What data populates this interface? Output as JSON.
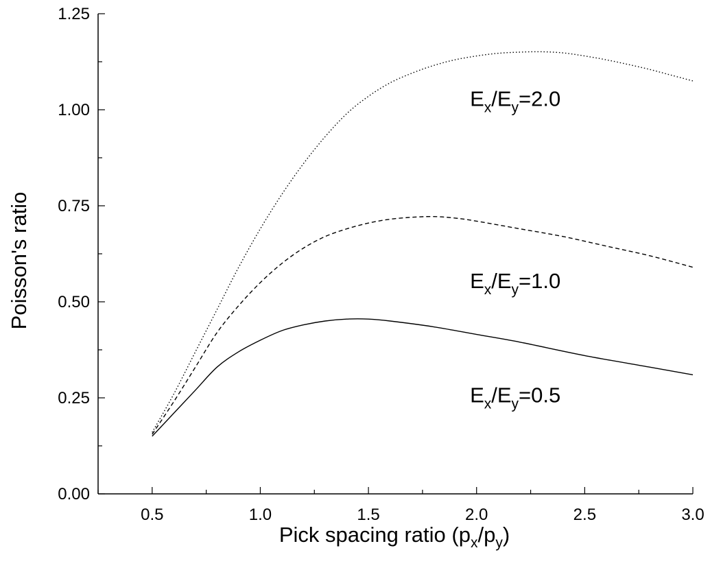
{
  "chart_data": {
    "type": "line",
    "xlabel_main": "Pick spacing ratio (p",
    "xlabel_sub1": "x",
    "xlabel_mid": "/p",
    "xlabel_sub2": "y",
    "xlabel_end": ")",
    "ylabel": "Poisson's ratio",
    "xlim": [
      0.25,
      3.0
    ],
    "ylim": [
      0.0,
      1.25
    ],
    "x_ticks": [
      "0.5",
      "1.0",
      "1.5",
      "2.0",
      "2.5",
      "3.0"
    ],
    "y_ticks": [
      "0.00",
      "0.25",
      "0.50",
      "0.75",
      "1.00",
      "1.25"
    ],
    "grid": false,
    "series": [
      {
        "label_a": "E",
        "label_sub_a": "x",
        "label_b": "/E",
        "label_sub_b": "y",
        "label_c": "=0.5",
        "style": "solid",
        "x": [
          0.5,
          0.6,
          0.7,
          0.8,
          0.9,
          1.0,
          1.1,
          1.2,
          1.3,
          1.4,
          1.5,
          1.6,
          1.8,
          2.0,
          2.2,
          2.5,
          2.8,
          3.0
        ],
        "y": [
          0.15,
          0.21,
          0.27,
          0.33,
          0.37,
          0.4,
          0.425,
          0.44,
          0.45,
          0.455,
          0.455,
          0.45,
          0.435,
          0.415,
          0.395,
          0.36,
          0.33,
          0.31
        ]
      },
      {
        "label_a": "E",
        "label_sub_a": "x",
        "label_b": "/E",
        "label_sub_b": "y",
        "label_c": "=1.0",
        "style": "dashed",
        "x": [
          0.5,
          0.6,
          0.7,
          0.8,
          0.9,
          1.0,
          1.1,
          1.2,
          1.3,
          1.4,
          1.5,
          1.6,
          1.7,
          1.8,
          1.9,
          2.0,
          2.2,
          2.4,
          2.6,
          2.8,
          3.0
        ],
        "y": [
          0.155,
          0.24,
          0.33,
          0.42,
          0.49,
          0.55,
          0.6,
          0.64,
          0.67,
          0.69,
          0.705,
          0.715,
          0.72,
          0.722,
          0.718,
          0.71,
          0.69,
          0.67,
          0.645,
          0.62,
          0.59
        ]
      },
      {
        "label_a": "E",
        "label_sub_a": "x",
        "label_b": "/E",
        "label_sub_b": "y",
        "label_c": "=2.0",
        "style": "dotted",
        "x": [
          0.5,
          0.6,
          0.7,
          0.8,
          0.9,
          1.0,
          1.1,
          1.2,
          1.3,
          1.4,
          1.5,
          1.6,
          1.7,
          1.8,
          1.9,
          2.0,
          2.1,
          2.2,
          2.3,
          2.4,
          2.5,
          2.6,
          2.7,
          2.8,
          2.9,
          3.0
        ],
        "y": [
          0.16,
          0.26,
          0.37,
          0.48,
          0.59,
          0.69,
          0.78,
          0.86,
          0.93,
          0.99,
          1.035,
          1.07,
          1.095,
          1.115,
          1.13,
          1.14,
          1.147,
          1.15,
          1.151,
          1.148,
          1.14,
          1.13,
          1.118,
          1.105,
          1.09,
          1.075
        ]
      }
    ]
  }
}
